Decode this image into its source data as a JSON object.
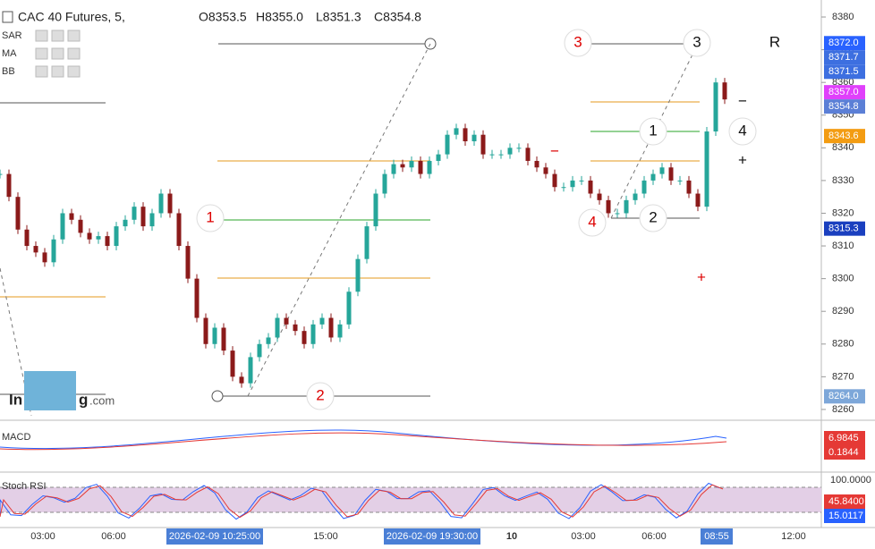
{
  "chart_data": {
    "type": "candlestick",
    "title": "CAC 40 Futures, 5,",
    "ohlc": [
      "O8353.5",
      "H8355.0",
      "L8351.3",
      "C8354.8"
    ],
    "indicators": [
      "SAR",
      "MA",
      "BB"
    ],
    "closes": [
      8332,
      8325,
      8315,
      8310,
      8308,
      8305,
      8312,
      8320,
      8318,
      8314,
      8312,
      8313,
      8310,
      8316,
      8318,
      8322,
      8316,
      8320,
      8326,
      8320,
      8310,
      8300,
      8288,
      8280,
      8285,
      8278,
      8270,
      8268,
      8276,
      8280,
      8282,
      8288,
      8286,
      8284,
      8280,
      8286,
      8288,
      8282,
      8286,
      8296,
      8306,
      8316,
      8326,
      8332,
      8335,
      8334,
      8336,
      8332,
      8336,
      8338,
      8344,
      8346,
      8342,
      8344,
      8338,
      8338,
      8338,
      8340,
      8340,
      8336,
      8334,
      8332,
      8328,
      8328,
      8330,
      8330,
      8326,
      8324,
      8320,
      8320,
      8324,
      8326,
      8330,
      8332,
      8334,
      8330,
      8330,
      8326,
      8322,
      8345,
      8360,
      8354.8
    ],
    "ylim": [
      8256.7,
      8385.2
    ],
    "yticks": [
      8380,
      8370,
      8360,
      8350,
      8340,
      8330,
      8320,
      8310,
      8300,
      8290,
      8280,
      8270,
      8260
    ],
    "price_markers": [
      {
        "value": 8372.0,
        "label": "8372.0",
        "color": "#2962ff"
      },
      {
        "value": 8371.7,
        "label": "8371.7",
        "color": "#3d6fe0"
      },
      {
        "value": 8371.5,
        "label": "8371.5",
        "color": "#3d6fe0"
      },
      {
        "value": 8357.0,
        "label": "8357.0",
        "color": "#e040fb"
      },
      {
        "value": 8354.8,
        "label": "8354.8",
        "color": "#5b7fd6"
      },
      {
        "value": 8343.6,
        "label": "8343.6",
        "color": "#f39c12"
      },
      {
        "value": 8315.3,
        "label": "8315.3",
        "color": "#1a3fbf"
      },
      {
        "value": 8264.0,
        "label": "8264.0",
        "color": "#7da7d9"
      }
    ],
    "annotations": [
      "3",
      "3",
      "R",
      "1",
      "4",
      "1",
      "4",
      "2",
      "2",
      "−",
      "+",
      "−",
      "+"
    ],
    "macd": {
      "name": "MACD",
      "labels": [
        "6.9845",
        "0.1844"
      ]
    },
    "stoch_rsi": {
      "name": "Stoch RSI",
      "labels": [
        "100.0000",
        "45.8400",
        "15.0117"
      ]
    },
    "time_labels": [
      "03:00",
      "06:00",
      "2026-02-09 10:25:00",
      "15:00",
      "2026-02-09 19:30:00",
      "10",
      "03:00",
      "06:00",
      "08:55",
      "12:00"
    ],
    "up_color": "#26a69a",
    "down_color": "#8b1a1a"
  }
}
